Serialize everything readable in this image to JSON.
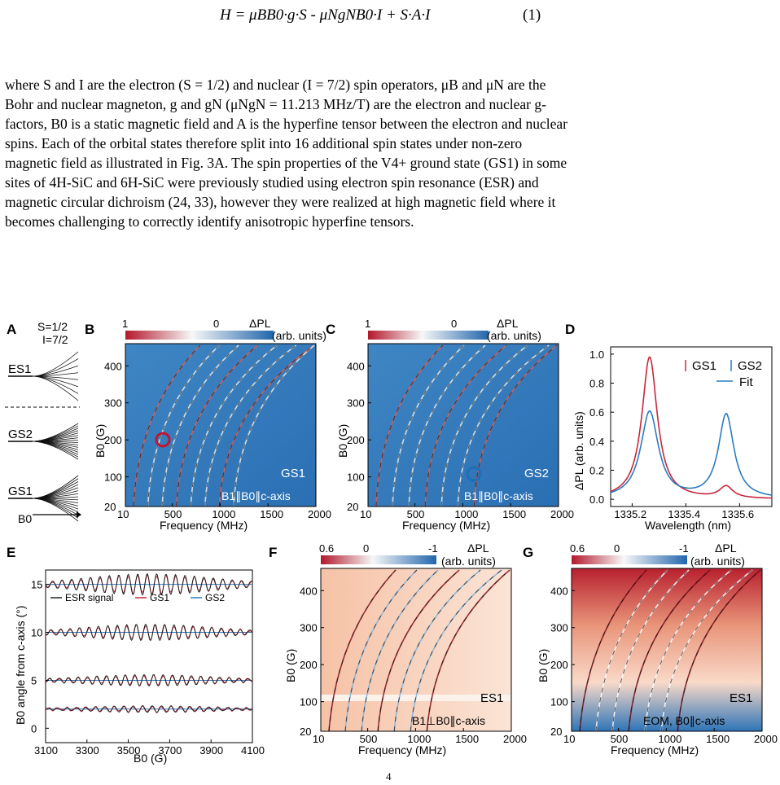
{
  "equation": {
    "expression": "H = μBB0·g·S - μNgNB0·I + S·A·I",
    "number": "(1)"
  },
  "paragraph": [
    "where S and I are the electron (S = 1/2) and nuclear (I = 7/2) spin operators, μB and μN are the",
    "Bohr and nuclear magneton, g and gN (μNgN = 11.213 MHz/T) are the electron and nuclear g-",
    "factors, B0 is a static magnetic field and A is the hyperfine tensor between the electron and nuclear",
    "spins. Each of the orbital states therefore split into 16 additional spin states under non-zero",
    "magnetic field as illustrated in Fig. 3A. The spin properties of the V4+ ground state (GS1) in some",
    "sites of 4H-SiC and 6H-SiC were previously studied using electron spin resonance (ESR) and",
    "magnetic circular dichroism (24, 33), however they were realized at high magnetic field where it",
    "becomes challenging to correctly identify anisotropic hyperfine tensors."
  ],
  "figure": {
    "panelA": {
      "label": "A",
      "spin": "S=1/2",
      "nuclear": "I=7/2",
      "levels": [
        "ES1",
        "GS2",
        "GS1"
      ],
      "axis": "B0"
    },
    "panelB": {
      "label": "B",
      "cbar_max": "1",
      "cbar_mid": "0",
      "cbar_title": "ΔPL",
      "cbar_units": "(arb. units)",
      "ylabel": "B0 (G)",
      "xlabel": "Frequency (MHz)",
      "xticks": [
        "10",
        "500",
        "1000",
        "1500",
        "2000"
      ],
      "yticks": [
        "20",
        "100",
        "200",
        "300",
        "400"
      ],
      "tag": "GS1",
      "condition": "B1∥B0∥c-axis"
    },
    "panelC": {
      "label": "C",
      "cbar_max": "1",
      "cbar_mid": "0",
      "cbar_title": "ΔPL",
      "cbar_units": "(arb. units)",
      "ylabel": "B0 (G)",
      "xlabel": "Frequency (MHz)",
      "xticks": [
        "10",
        "500",
        "1000",
        "1500",
        "2000"
      ],
      "yticks": [
        "20",
        "100",
        "200",
        "300",
        "400"
      ],
      "tag": "GS2",
      "condition": "B1∥B0∥c-axis"
    },
    "panelD": {
      "label": "D",
      "ylabel": "ΔPL (arb. units)",
      "xlabel": "Wavelength (nm)",
      "xticks": [
        "1335.2",
        "1335.4",
        "1335.6"
      ],
      "yticks": [
        "0.0",
        "0.2",
        "0.4",
        "0.6",
        "0.8",
        "1.0"
      ],
      "legend": [
        "GS1",
        "GS2",
        "Fit"
      ],
      "colors": {
        "gs1": "#c8283c",
        "gs2": "#2b7bbf"
      }
    },
    "panelE": {
      "label": "E",
      "ylabel": "B0 angle from c-axis (°)",
      "xlabel": "B0 (G)",
      "xticks": [
        "3100",
        "3300",
        "3500",
        "3700",
        "3900",
        "4100"
      ],
      "yticks": [
        "0",
        "5",
        "10",
        "15"
      ],
      "legend": [
        "ESR signal",
        "GS1",
        "GS2"
      ]
    },
    "panelF": {
      "label": "F",
      "cbar_max": "0.6",
      "cbar_mid": "0",
      "cbar_min": "-1",
      "cbar_title": "ΔPL",
      "cbar_units": "(arb. units)",
      "ylabel": "B0 (G)",
      "xlabel": "Frequency (MHz)",
      "xticks": [
        "10",
        "500",
        "1000",
        "1500",
        "2000"
      ],
      "yticks": [
        "20",
        "100",
        "200",
        "300",
        "400"
      ],
      "tag": "ES1",
      "condition": "B1⊥B0∥c-axis"
    },
    "panelG": {
      "label": "G",
      "cbar_max": "0.6",
      "cbar_mid": "0",
      "cbar_min": "-1",
      "cbar_title": "ΔPL",
      "cbar_units": "(arb. units)",
      "ylabel": "B0 (G)",
      "xlabel": "Frequency (MHz)",
      "xticks": [
        "10",
        "500",
        "1000",
        "1500",
        "2000"
      ],
      "yticks": [
        "20",
        "100",
        "200",
        "300",
        "400"
      ],
      "tag": "ES1",
      "condition": "EOM, B0∥c-axis"
    }
  },
  "page_number": "4"
}
